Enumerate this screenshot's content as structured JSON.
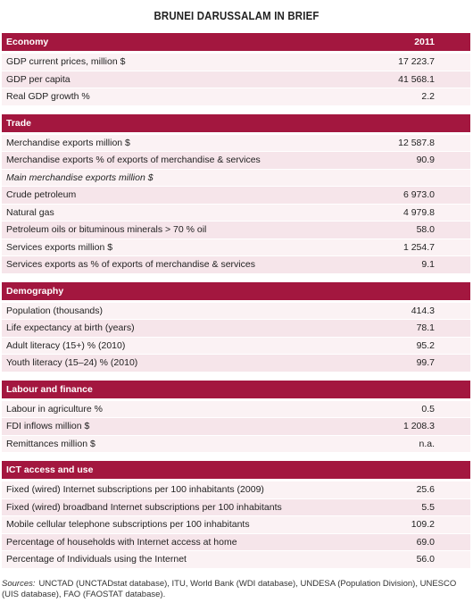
{
  "title": "BRUNEI DARUSSALAM IN BRIEF",
  "sections": [
    {
      "title": "Economy",
      "year": "2011",
      "rows": [
        {
          "label": "GDP current prices, million $",
          "value": "17 223.7"
        },
        {
          "label": "GDP per capita",
          "value": "41 568.1"
        },
        {
          "label": "Real GDP growth %",
          "value": "2.2"
        }
      ]
    },
    {
      "title": "Trade",
      "rows": [
        {
          "label": "Merchandise exports million $",
          "value": "12 587.8"
        },
        {
          "label": "Merchandise exports % of exports of merchandise & services",
          "value": "90.9"
        },
        {
          "subheading": "Main merchandise exports million $"
        },
        {
          "label": "Crude petroleum",
          "value": "6 973.0"
        },
        {
          "label": "Natural gas",
          "value": "4 979.8"
        },
        {
          "label": "Petroleum oils or bituminous minerals > 70 % oil",
          "value": "58.0"
        },
        {
          "label": "Services exports million $",
          "value": "1 254.7"
        },
        {
          "label": "Services exports as % of exports of merchandise & services",
          "value": "9.1"
        }
      ]
    },
    {
      "title": "Demography",
      "rows": [
        {
          "label": "Population (thousands)",
          "value": "414.3"
        },
        {
          "label": "Life expectancy at birth (years)",
          "value": "78.1"
        },
        {
          "label": "Adult literacy (15+) % (2010)",
          "value": "95.2"
        },
        {
          "label": "Youth literacy (15–24) % (2010)",
          "value": "99.7"
        }
      ]
    },
    {
      "title": "Labour and finance",
      "rows": [
        {
          "label": "Labour in agriculture %",
          "value": "0.5"
        },
        {
          "label": "FDI inflows million $",
          "value": "1 208.3"
        },
        {
          "label": "Remittances million $",
          "value": "n.a."
        }
      ]
    },
    {
      "title": "ICT access and use",
      "rows": [
        {
          "label": "Fixed (wired) Internet subscriptions per 100 inhabitants (2009)",
          "value": "25.6"
        },
        {
          "label": "Fixed (wired) broadband Internet subscriptions per 100 inhabitants",
          "value": "5.5"
        },
        {
          "label": "Mobile cellular telephone subscriptions per 100 inhabitants",
          "value": "109.2"
        },
        {
          "label": "Percentage of households with Internet access at home",
          "value": "69.0"
        },
        {
          "label": "Percentage of Individuals using the Internet",
          "value": "56.0"
        }
      ]
    }
  ],
  "sources": {
    "label": "Sources:",
    "text": "UNCTAD (UNCTADstat database), ITU, World Bank (WDI database), UNDESA (Population Division), UNESCO (UIS database), FAO (FAOSTAT database)."
  }
}
